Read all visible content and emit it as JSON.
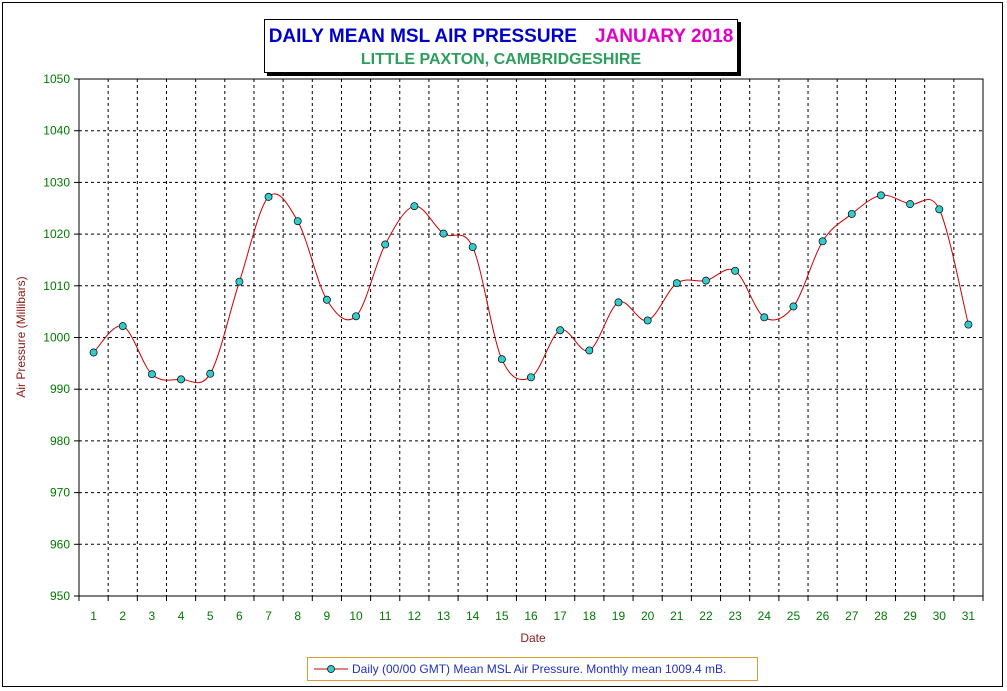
{
  "title": {
    "main": "DAILY MEAN MSL AIR PRESSURE",
    "month": "JANUARY 2018",
    "subtitle": "LITTLE PAXTON, CAMBRIDGESHIRE"
  },
  "colors": {
    "title_main": "#0000cc",
    "title_month": "#e000c8",
    "subtitle": "#2e9e5e",
    "tick_labels": "#007a00",
    "axis_titles": "#8b1a1a",
    "line": "#cc0000",
    "marker_fill": "#33cccc",
    "grid": "#000000",
    "legend_text": "#2030c0",
    "legend_border": "#e09a3a"
  },
  "chart_data": {
    "type": "line",
    "xlabel": "Date",
    "ylabel": "Air Pressure (Millibars)",
    "ylim": [
      950,
      1050
    ],
    "xlim": [
      1,
      31
    ],
    "yticks": [
      950,
      960,
      970,
      980,
      990,
      1000,
      1010,
      1020,
      1030,
      1040,
      1050
    ],
    "grid": true,
    "legend_position": "bottom",
    "x": [
      1,
      2,
      3,
      4,
      5,
      6,
      7,
      8,
      9,
      10,
      11,
      12,
      13,
      14,
      15,
      16,
      17,
      18,
      19,
      20,
      21,
      22,
      23,
      24,
      25,
      26,
      27,
      28,
      29,
      30,
      31
    ],
    "series": [
      {
        "name": "Daily (00/00 GMT) Mean MSL Air Pressure. Monthly mean 1009.4 mB.",
        "values": [
          997.1,
          1002.2,
          992.9,
          991.9,
          993.0,
          1010.8,
          1027.2,
          1022.5,
          1007.3,
          1004.1,
          1018.0,
          1025.4,
          1020.1,
          1017.5,
          995.8,
          992.3,
          1001.4,
          997.5,
          1006.8,
          1003.3,
          1010.5,
          1011.0,
          1012.9,
          1003.9,
          1006.0,
          1018.6,
          1023.9,
          1027.5,
          1025.8,
          1024.8,
          1002.5
        ]
      }
    ]
  }
}
